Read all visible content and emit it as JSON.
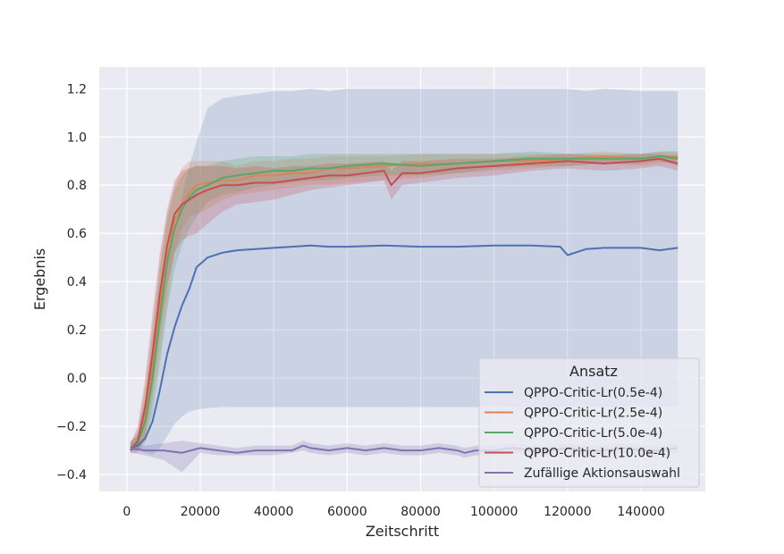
{
  "chart_data": {
    "type": "line",
    "title": "",
    "xlabel": "Zeitschritt",
    "ylabel": "Ergebnis",
    "xlim": [
      -7500,
      157500
    ],
    "ylim": [
      -0.47,
      1.29
    ],
    "xticks": [
      0,
      20000,
      40000,
      60000,
      80000,
      100000,
      120000,
      140000
    ],
    "xtick_labels": [
      "0",
      "20000",
      "40000",
      "60000",
      "80000",
      "100000",
      "120000",
      "140000"
    ],
    "yticks": [
      -0.4,
      -0.2,
      0.0,
      0.2,
      0.4,
      0.6,
      0.8,
      1.0,
      1.2
    ],
    "ytick_labels": [
      "−0.4",
      "−0.2",
      "0.0",
      "0.2",
      "0.4",
      "0.6",
      "0.8",
      "1.0",
      "1.2"
    ],
    "grid": true,
    "legend": {
      "title": "Ansatz",
      "position": "lower-right"
    },
    "series": [
      {
        "name": "QPPO-Critic-Lr(0.5e-4)",
        "color": "#4c72b0",
        "x": [
          1000,
          3000,
          5000,
          7000,
          9000,
          11000,
          13000,
          15000,
          17000,
          19000,
          22000,
          26000,
          30000,
          35000,
          40000,
          45000,
          50000,
          55000,
          60000,
          70000,
          80000,
          90000,
          100000,
          110000,
          118000,
          120000,
          125000,
          130000,
          140000,
          145000,
          150000
        ],
        "y": [
          -0.29,
          -0.28,
          -0.25,
          -0.18,
          -0.05,
          0.1,
          0.21,
          0.3,
          0.37,
          0.46,
          0.5,
          0.52,
          0.53,
          0.535,
          0.54,
          0.545,
          0.55,
          0.545,
          0.545,
          0.55,
          0.545,
          0.545,
          0.55,
          0.55,
          0.545,
          0.51,
          0.535,
          0.54,
          0.54,
          0.53,
          0.54
        ],
        "lower": [
          -0.3,
          -0.3,
          -0.31,
          -0.32,
          -0.29,
          -0.24,
          -0.19,
          -0.16,
          -0.14,
          -0.13,
          -0.125,
          -0.12,
          -0.12,
          -0.12,
          -0.12,
          -0.12,
          -0.12,
          -0.12,
          -0.12,
          -0.12,
          -0.12,
          -0.12,
          -0.12,
          -0.12,
          -0.12,
          -0.12,
          -0.12,
          -0.12,
          -0.12,
          -0.12,
          -0.12
        ],
        "upper": [
          -0.26,
          -0.24,
          -0.15,
          0.05,
          0.3,
          0.48,
          0.62,
          0.75,
          0.88,
          0.98,
          1.12,
          1.16,
          1.17,
          1.18,
          1.19,
          1.19,
          1.2,
          1.19,
          1.2,
          1.2,
          1.2,
          1.2,
          1.2,
          1.2,
          1.2,
          1.2,
          1.19,
          1.2,
          1.19,
          1.19,
          1.19
        ]
      },
      {
        "name": "QPPO-Critic-Lr(2.5e-4)",
        "color": "#dd8452",
        "x": [
          1000,
          3000,
          5000,
          7000,
          9000,
          11000,
          13000,
          15000,
          17000,
          19000,
          22000,
          26000,
          30000,
          35000,
          40000,
          45000,
          50000,
          55000,
          60000,
          70000,
          80000,
          90000,
          100000,
          110000,
          120000,
          130000,
          140000,
          145000,
          150000
        ],
        "y": [
          -0.29,
          -0.27,
          -0.15,
          0.05,
          0.3,
          0.5,
          0.65,
          0.72,
          0.77,
          0.8,
          0.81,
          0.82,
          0.82,
          0.84,
          0.84,
          0.85,
          0.85,
          0.87,
          0.87,
          0.88,
          0.89,
          0.89,
          0.9,
          0.9,
          0.91,
          0.92,
          0.91,
          0.92,
          0.92
        ],
        "lower": [
          -0.3,
          -0.3,
          -0.25,
          -0.1,
          0.1,
          0.3,
          0.52,
          0.62,
          0.67,
          0.68,
          0.7,
          0.74,
          0.76,
          0.77,
          0.78,
          0.79,
          0.8,
          0.8,
          0.81,
          0.82,
          0.83,
          0.85,
          0.86,
          0.87,
          0.88,
          0.89,
          0.88,
          0.89,
          0.9
        ],
        "upper": [
          -0.27,
          -0.22,
          -0.03,
          0.22,
          0.48,
          0.68,
          0.8,
          0.87,
          0.9,
          0.9,
          0.9,
          0.9,
          0.88,
          0.9,
          0.9,
          0.91,
          0.91,
          0.92,
          0.92,
          0.92,
          0.93,
          0.93,
          0.93,
          0.93,
          0.93,
          0.94,
          0.93,
          0.94,
          0.94
        ]
      },
      {
        "name": "QPPO-Critic-Lr(5.0e-4)",
        "color": "#55a868",
        "x": [
          1000,
          3000,
          5000,
          7000,
          9000,
          11000,
          13000,
          15000,
          17000,
          19000,
          22000,
          26000,
          30000,
          35000,
          40000,
          45000,
          50000,
          55000,
          60000,
          70000,
          80000,
          90000,
          100000,
          110000,
          120000,
          130000,
          140000,
          145000,
          150000
        ],
        "y": [
          -0.29,
          -0.27,
          -0.18,
          0.0,
          0.25,
          0.48,
          0.62,
          0.7,
          0.75,
          0.78,
          0.8,
          0.83,
          0.84,
          0.85,
          0.86,
          0.86,
          0.87,
          0.87,
          0.88,
          0.89,
          0.88,
          0.89,
          0.9,
          0.91,
          0.91,
          0.91,
          0.91,
          0.92,
          0.91
        ],
        "lower": [
          -0.3,
          -0.3,
          -0.27,
          -0.15,
          0.05,
          0.28,
          0.45,
          0.55,
          0.62,
          0.67,
          0.73,
          0.76,
          0.77,
          0.79,
          0.8,
          0.81,
          0.82,
          0.82,
          0.83,
          0.84,
          0.84,
          0.85,
          0.87,
          0.88,
          0.88,
          0.89,
          0.89,
          0.9,
          0.88
        ],
        "upper": [
          -0.27,
          -0.23,
          -0.08,
          0.18,
          0.45,
          0.66,
          0.78,
          0.84,
          0.87,
          0.88,
          0.88,
          0.9,
          0.91,
          0.92,
          0.92,
          0.92,
          0.93,
          0.93,
          0.93,
          0.93,
          0.93,
          0.93,
          0.93,
          0.94,
          0.93,
          0.93,
          0.93,
          0.94,
          0.94
        ]
      },
      {
        "name": "QPPO-Critic-Lr(10.0e-4)",
        "color": "#c44e52",
        "x": [
          1000,
          3000,
          5000,
          7000,
          9000,
          11000,
          13000,
          15000,
          17000,
          19000,
          22000,
          26000,
          30000,
          35000,
          40000,
          45000,
          50000,
          55000,
          60000,
          70000,
          72000,
          75000,
          80000,
          90000,
          100000,
          110000,
          120000,
          130000,
          140000,
          145000,
          150000
        ],
        "y": [
          -0.3,
          -0.26,
          -0.12,
          0.1,
          0.35,
          0.55,
          0.68,
          0.72,
          0.74,
          0.76,
          0.78,
          0.8,
          0.8,
          0.81,
          0.81,
          0.82,
          0.83,
          0.84,
          0.84,
          0.86,
          0.8,
          0.85,
          0.85,
          0.87,
          0.88,
          0.89,
          0.9,
          0.89,
          0.9,
          0.91,
          0.89
        ],
        "lower": [
          -0.31,
          -0.31,
          -0.24,
          -0.05,
          0.18,
          0.38,
          0.52,
          0.57,
          0.59,
          0.6,
          0.64,
          0.69,
          0.72,
          0.73,
          0.74,
          0.76,
          0.78,
          0.79,
          0.8,
          0.82,
          0.74,
          0.8,
          0.81,
          0.83,
          0.84,
          0.86,
          0.87,
          0.86,
          0.87,
          0.88,
          0.86
        ],
        "upper": [
          -0.27,
          -0.2,
          0.0,
          0.27,
          0.52,
          0.7,
          0.82,
          0.86,
          0.87,
          0.88,
          0.88,
          0.88,
          0.87,
          0.88,
          0.87,
          0.88,
          0.88,
          0.89,
          0.89,
          0.9,
          0.86,
          0.9,
          0.9,
          0.91,
          0.91,
          0.92,
          0.93,
          0.92,
          0.93,
          0.93,
          0.92
        ]
      },
      {
        "name": "Zufällige Aktionsauswahl",
        "color": "#8172b3",
        "x": [
          1000,
          5000,
          10000,
          15000,
          20000,
          25000,
          30000,
          35000,
          40000,
          45000,
          48000,
          50000,
          55000,
          60000,
          65000,
          70000,
          75000,
          80000,
          85000,
          90000,
          92000,
          95000,
          100000,
          105000,
          110000,
          115000,
          120000,
          125000,
          130000,
          135000,
          140000,
          145000,
          150000
        ],
        "y": [
          -0.29,
          -0.3,
          -0.3,
          -0.31,
          -0.29,
          -0.3,
          -0.31,
          -0.3,
          -0.3,
          -0.3,
          -0.28,
          -0.29,
          -0.3,
          -0.29,
          -0.3,
          -0.29,
          -0.3,
          -0.3,
          -0.29,
          -0.3,
          -0.31,
          -0.3,
          -0.3,
          -0.29,
          -0.3,
          -0.3,
          -0.29,
          -0.3,
          -0.3,
          -0.29,
          -0.3,
          -0.3,
          -0.29
        ],
        "lower": [
          -0.31,
          -0.32,
          -0.34,
          -0.39,
          -0.31,
          -0.32,
          -0.32,
          -0.32,
          -0.32,
          -0.31,
          -0.3,
          -0.31,
          -0.32,
          -0.31,
          -0.32,
          -0.31,
          -0.32,
          -0.32,
          -0.31,
          -0.32,
          -0.33,
          -0.32,
          -0.32,
          -0.31,
          -0.32,
          -0.32,
          -0.31,
          -0.32,
          -0.32,
          -0.31,
          -0.32,
          -0.32,
          -0.31
        ],
        "upper": [
          -0.27,
          -0.28,
          -0.27,
          -0.26,
          -0.27,
          -0.28,
          -0.29,
          -0.28,
          -0.28,
          -0.28,
          -0.26,
          -0.27,
          -0.28,
          -0.27,
          -0.28,
          -0.27,
          -0.28,
          -0.28,
          -0.27,
          -0.28,
          -0.29,
          -0.28,
          -0.28,
          -0.27,
          -0.28,
          -0.28,
          -0.27,
          -0.28,
          -0.28,
          -0.27,
          -0.28,
          -0.28,
          -0.27
        ]
      }
    ]
  }
}
